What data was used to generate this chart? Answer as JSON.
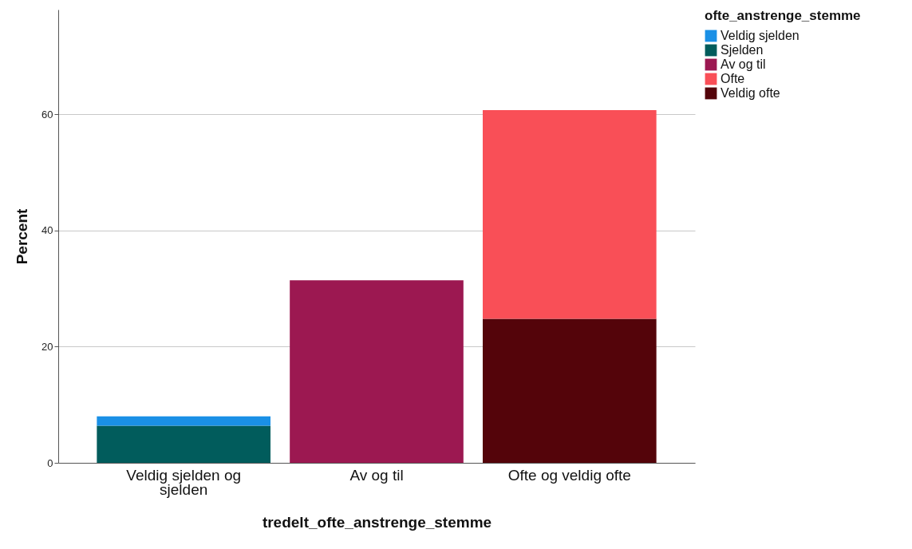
{
  "chart_data": {
    "type": "bar",
    "stacked": true,
    "xlabel": "tredelt_ofte_anstrenge_stemme",
    "ylabel": "Percent",
    "legend_title": "ofte_anstrenge_stemme",
    "categories": [
      "Veldig sjelden og sjelden",
      "Av og til",
      "Ofte og veldig ofte"
    ],
    "series": [
      {
        "name": "Veldig ofte",
        "color": "#54040a",
        "values": [
          null,
          null,
          24.8
        ]
      },
      {
        "name": "Ofte",
        "color": "#f94f57",
        "values": [
          null,
          null,
          35.9
        ]
      },
      {
        "name": "Av og til",
        "color": "#9c1851",
        "values": [
          null,
          31.4,
          null
        ]
      },
      {
        "name": "Sjelden",
        "color": "#015c5c",
        "values": [
          6.4,
          null,
          null
        ]
      },
      {
        "name": "Veldig sjelden",
        "color": "#1a90e6",
        "values": [
          1.6,
          null,
          null
        ]
      }
    ],
    "ylim": [
      0,
      78
    ],
    "yticks": [
      0,
      20,
      40,
      60
    ],
    "grid": "y",
    "legend": "top right"
  }
}
